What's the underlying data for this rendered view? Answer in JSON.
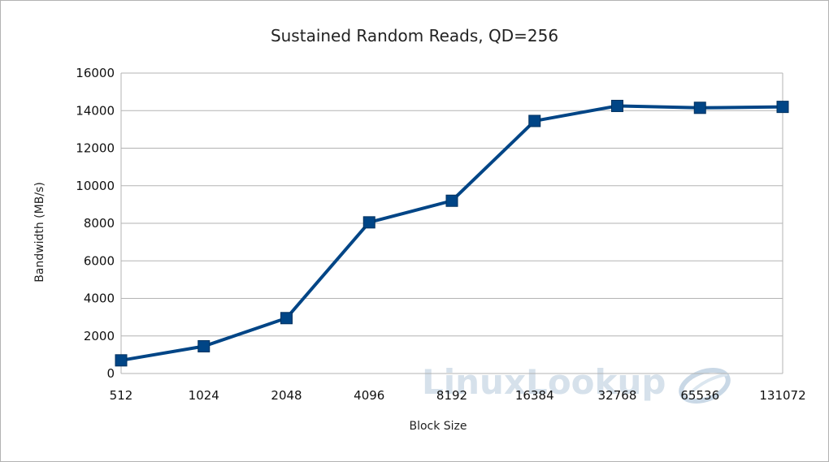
{
  "chart_data": {
    "type": "line",
    "title": "Sustained Random Reads, QD=256",
    "xlabel": "Block Size",
    "ylabel": "Bandwidth (MB/s)",
    "categories": [
      "512",
      "1024",
      "2048",
      "4096",
      "8192",
      "16384",
      "32768",
      "65536",
      "131072"
    ],
    "series": [
      {
        "values": [
          700,
          1450,
          2950,
          8050,
          9200,
          13450,
          14250,
          14150,
          14200
        ]
      }
    ],
    "ylim": [
      0,
      16000
    ],
    "yticks": [
      0,
      2000,
      4000,
      6000,
      8000,
      10000,
      12000,
      14000,
      16000
    ],
    "grid": true,
    "legend": "none",
    "colors": {
      "series": "#004586",
      "grid": "#b3b3b3",
      "axis": "#b3b3b3"
    },
    "watermark": "LinuxLookup"
  }
}
